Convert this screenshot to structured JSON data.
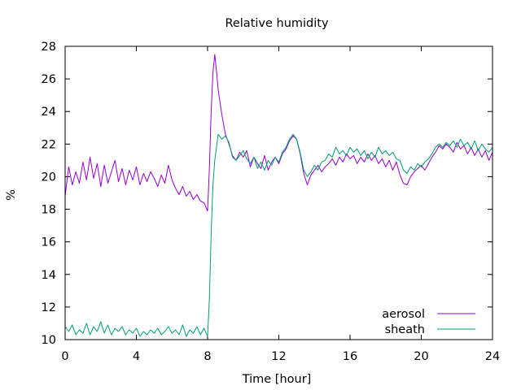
{
  "chart_data": {
    "type": "line",
    "title": "Relative humidity",
    "xlabel": "Time [hour]",
    "ylabel": "%",
    "xlim": [
      0,
      24
    ],
    "ylim": [
      10,
      28
    ],
    "xticks": [
      0,
      4,
      8,
      12,
      16,
      20,
      24
    ],
    "yticks": [
      10,
      12,
      14,
      16,
      18,
      20,
      22,
      24,
      26,
      28
    ],
    "grid": false,
    "legend_position": "bottom-right",
    "series": [
      {
        "name": "aerosol",
        "color": "#9400d3",
        "x": [
          0,
          0.2,
          0.4,
          0.6,
          0.8,
          1.0,
          1.2,
          1.4,
          1.6,
          1.8,
          2.0,
          2.2,
          2.4,
          2.6,
          2.8,
          3.0,
          3.2,
          3.4,
          3.6,
          3.8,
          4.0,
          4.2,
          4.4,
          4.6,
          4.8,
          5.0,
          5.2,
          5.4,
          5.6,
          5.8,
          6.0,
          6.2,
          6.4,
          6.6,
          6.8,
          7.0,
          7.2,
          7.4,
          7.6,
          7.8,
          8.0,
          8.1,
          8.2,
          8.3,
          8.4,
          8.5,
          8.6,
          8.8,
          9.0,
          9.2,
          9.4,
          9.6,
          9.8,
          10.0,
          10.2,
          10.4,
          10.6,
          10.8,
          11.0,
          11.2,
          11.4,
          11.6,
          11.8,
          12.0,
          12.2,
          12.4,
          12.6,
          12.8,
          13.0,
          13.2,
          13.4,
          13.6,
          13.8,
          14.0,
          14.2,
          14.4,
          14.6,
          14.8,
          15.0,
          15.2,
          15.4,
          15.6,
          15.8,
          16.0,
          16.2,
          16.4,
          16.6,
          16.8,
          17.0,
          17.2,
          17.4,
          17.6,
          17.8,
          18.0,
          18.2,
          18.4,
          18.6,
          18.8,
          19.0,
          19.2,
          19.4,
          19.6,
          19.8,
          20.0,
          20.2,
          20.4,
          20.6,
          20.8,
          21.0,
          21.2,
          21.4,
          21.6,
          21.8,
          22.0,
          22.2,
          22.4,
          22.6,
          22.8,
          23.0,
          23.2,
          23.4,
          23.6,
          23.8,
          24.0
        ],
        "values": [
          18.8,
          20.6,
          19.5,
          20.3,
          19.6,
          20.9,
          19.8,
          21.2,
          19.9,
          20.8,
          19.4,
          20.7,
          19.6,
          20.3,
          21.0,
          19.7,
          20.5,
          19.5,
          20.4,
          19.8,
          20.6,
          19.5,
          20.2,
          19.7,
          20.3,
          19.9,
          19.4,
          20.1,
          19.6,
          20.7,
          19.8,
          19.3,
          18.9,
          19.4,
          18.8,
          19.1,
          18.6,
          18.9,
          18.5,
          18.4,
          17.9,
          20.5,
          24.0,
          26.4,
          27.5,
          26.5,
          25.3,
          23.8,
          22.6,
          22.0,
          21.3,
          21.0,
          21.5,
          21.2,
          21.6,
          20.6,
          21.2,
          20.8,
          20.5,
          21.3,
          20.4,
          20.9,
          21.2,
          20.8,
          21.4,
          21.7,
          22.2,
          22.5,
          22.3,
          21.4,
          20.2,
          19.5,
          20.1,
          20.4,
          20.7,
          20.3,
          20.6,
          20.8,
          21.1,
          20.7,
          21.2,
          20.9,
          21.4,
          21.1,
          21.3,
          20.8,
          21.2,
          20.9,
          21.4,
          21.0,
          21.3,
          20.8,
          21.1,
          20.6,
          21.0,
          20.4,
          20.9,
          20.1,
          19.6,
          19.5,
          20.0,
          20.3,
          20.5,
          20.7,
          20.4,
          20.8,
          21.2,
          21.5,
          21.9,
          21.7,
          22.0,
          21.8,
          21.5,
          22.1,
          21.7,
          21.9,
          21.4,
          21.8,
          21.3,
          21.7,
          21.2,
          21.6,
          21.0,
          21.5
        ]
      },
      {
        "name": "sheath",
        "color": "#009e73",
        "x": [
          0,
          0.2,
          0.4,
          0.6,
          0.8,
          1.0,
          1.2,
          1.4,
          1.6,
          1.8,
          2.0,
          2.2,
          2.4,
          2.6,
          2.8,
          3.0,
          3.2,
          3.4,
          3.6,
          3.8,
          4.0,
          4.2,
          4.4,
          4.6,
          4.8,
          5.0,
          5.2,
          5.4,
          5.6,
          5.8,
          6.0,
          6.2,
          6.4,
          6.6,
          6.8,
          7.0,
          7.2,
          7.4,
          7.6,
          7.8,
          8.0,
          8.1,
          8.2,
          8.3,
          8.4,
          8.5,
          8.6,
          8.8,
          9.0,
          9.2,
          9.4,
          9.6,
          9.8,
          10.0,
          10.2,
          10.4,
          10.6,
          10.8,
          11.0,
          11.2,
          11.4,
          11.6,
          11.8,
          12.0,
          12.2,
          12.4,
          12.6,
          12.8,
          13.0,
          13.2,
          13.4,
          13.6,
          13.8,
          14.0,
          14.2,
          14.4,
          14.6,
          14.8,
          15.0,
          15.2,
          15.4,
          15.6,
          15.8,
          16.0,
          16.2,
          16.4,
          16.6,
          16.8,
          17.0,
          17.2,
          17.4,
          17.6,
          17.8,
          18.0,
          18.2,
          18.4,
          18.6,
          18.8,
          19.0,
          19.2,
          19.4,
          19.6,
          19.8,
          20.0,
          20.2,
          20.4,
          20.6,
          20.8,
          21.0,
          21.2,
          21.4,
          21.6,
          21.8,
          22.0,
          22.2,
          22.4,
          22.6,
          22.8,
          23.0,
          23.2,
          23.4,
          23.6,
          23.8,
          24.0
        ],
        "values": [
          10.8,
          10.5,
          10.9,
          10.3,
          10.6,
          10.4,
          11.0,
          10.3,
          10.8,
          10.5,
          11.1,
          10.4,
          10.9,
          10.3,
          10.7,
          10.5,
          10.8,
          10.3,
          10.6,
          10.4,
          10.7,
          10.2,
          10.5,
          10.3,
          10.6,
          10.4,
          10.7,
          10.3,
          10.5,
          10.8,
          10.4,
          10.6,
          10.3,
          10.9,
          10.2,
          10.6,
          10.4,
          10.8,
          10.3,
          10.7,
          10.2,
          12.5,
          16.5,
          19.5,
          21.0,
          21.8,
          22.6,
          22.3,
          22.5,
          22.1,
          21.2,
          21.0,
          21.3,
          21.6,
          21.1,
          20.8,
          21.2,
          20.5,
          20.9,
          20.4,
          21.0,
          20.7,
          21.2,
          20.9,
          21.5,
          21.8,
          22.3,
          22.6,
          22.3,
          21.5,
          20.4,
          20.0,
          20.3,
          20.7,
          20.4,
          20.9,
          21.0,
          21.4,
          21.2,
          21.8,
          21.4,
          21.6,
          21.3,
          21.8,
          21.5,
          21.7,
          21.3,
          21.6,
          21.1,
          21.5,
          21.2,
          21.8,
          21.4,
          21.6,
          21.3,
          21.5,
          21.1,
          21.0,
          20.4,
          20.2,
          20.6,
          20.4,
          20.8,
          20.6,
          20.9,
          21.1,
          21.4,
          21.8,
          22.0,
          21.8,
          22.1,
          21.9,
          22.2,
          21.8,
          22.3,
          21.9,
          22.1,
          21.7,
          22.2,
          21.6,
          22.0,
          21.7,
          21.5,
          21.8
        ]
      }
    ]
  }
}
